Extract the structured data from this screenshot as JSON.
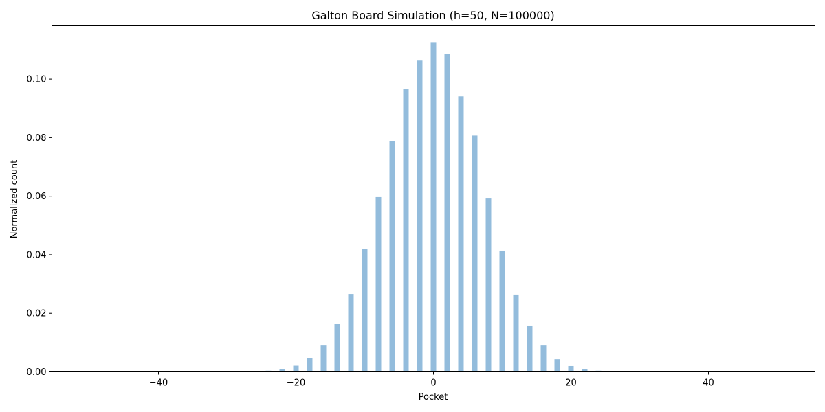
{
  "chart_data": {
    "type": "bar",
    "title": "Galton Board Simulation (h=50, N=100000)",
    "xlabel": "Pocket",
    "ylabel": "Normalized count",
    "xlim": [
      -55.5,
      55.5
    ],
    "ylim": [
      0,
      0.1182
    ],
    "xticks": [
      -40,
      -20,
      0,
      20,
      40
    ],
    "yticks": [
      0.0,
      0.02,
      0.04,
      0.06,
      0.08,
      0.1
    ],
    "ytick_labels": [
      "0.00",
      "0.02",
      "0.04",
      "0.06",
      "0.08",
      "0.10"
    ],
    "bar_width": 0.8,
    "bar_color": "#93bcdc",
    "grid": false,
    "x": [
      -26,
      -24,
      -22,
      -20,
      -18,
      -16,
      -14,
      -12,
      -10,
      -8,
      -6,
      -4,
      -2,
      0,
      2,
      4,
      6,
      8,
      10,
      12,
      14,
      16,
      18,
      20,
      22,
      24,
      26
    ],
    "values": [
      0.0001,
      0.0004,
      0.0009,
      0.0021,
      0.0046,
      0.009,
      0.0163,
      0.0266,
      0.0419,
      0.0597,
      0.0789,
      0.0965,
      0.1063,
      0.1126,
      0.1087,
      0.0941,
      0.0807,
      0.0592,
      0.0414,
      0.0264,
      0.0156,
      0.009,
      0.0043,
      0.002,
      0.0009,
      0.0004,
      0.0001
    ]
  }
}
